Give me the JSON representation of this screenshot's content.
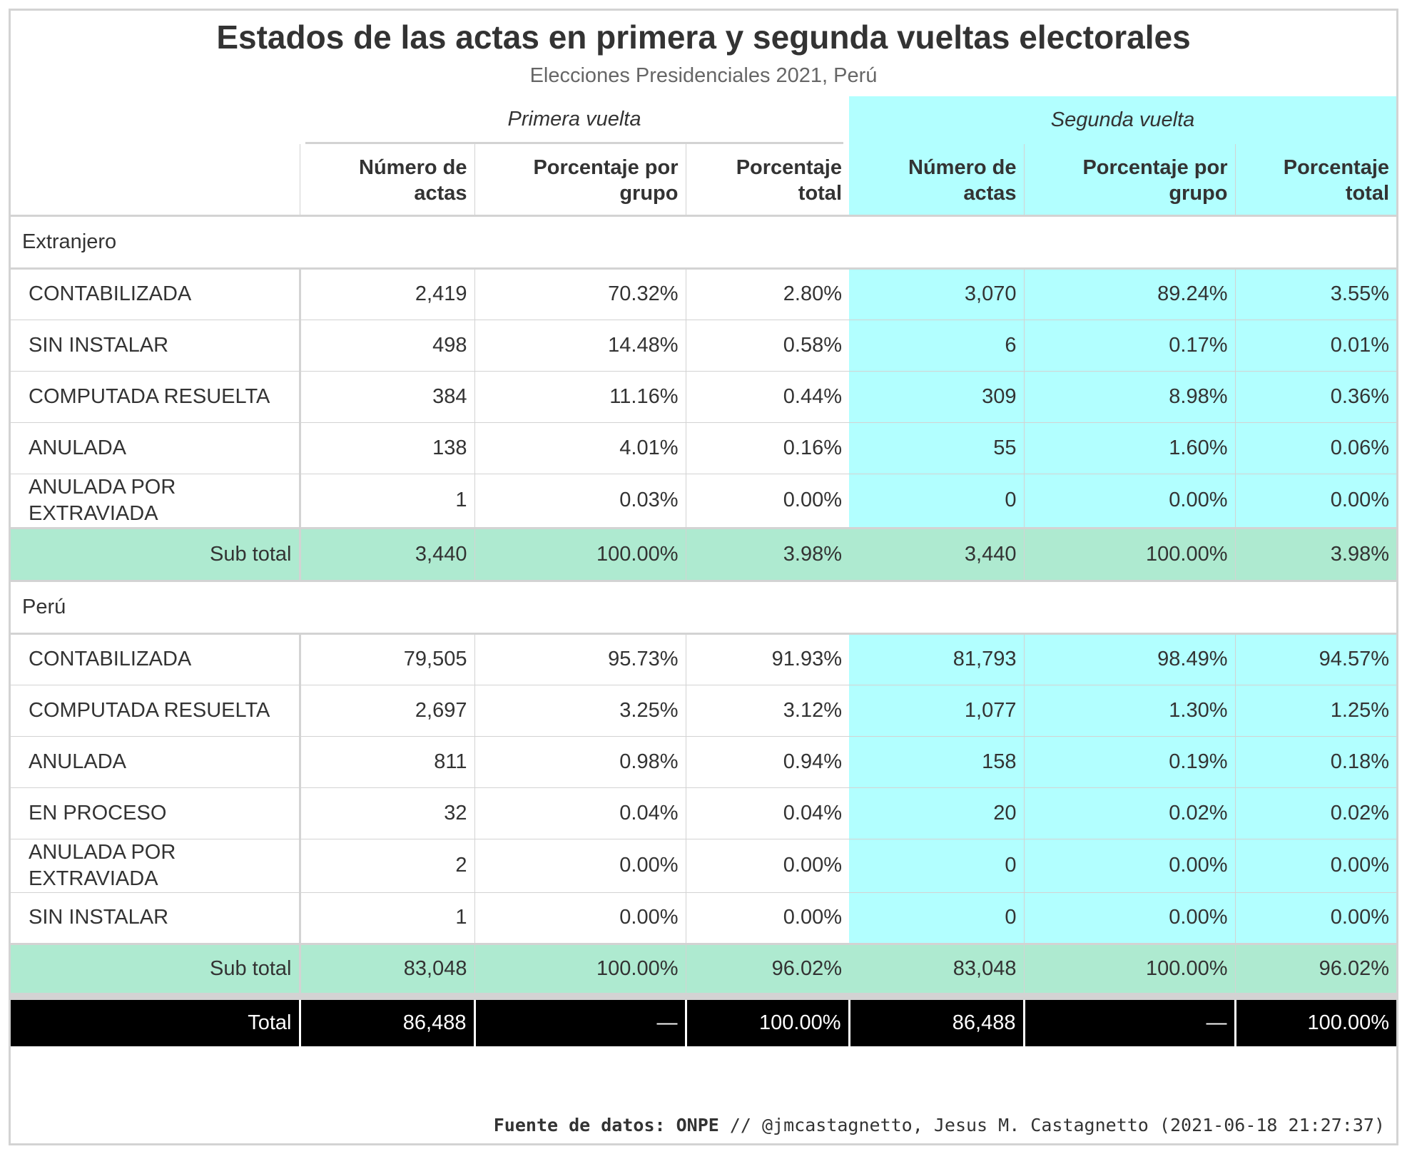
{
  "chart_data": {
    "type": "table",
    "title": "Estados de las actas en primera y segunda vueltas electorales",
    "subtitle": "Elecciones Presidenciales 2021, Perú",
    "spanners": [
      "Primera vuelta",
      "Segunda vuelta"
    ],
    "columns": [
      "Número de actas",
      "Porcentaje por grupo",
      "Porcentaje total",
      "Número de actas",
      "Porcentaje por grupo",
      "Porcentaje total"
    ],
    "groups": [
      {
        "name": "Extranjero",
        "rows": [
          {
            "label": "CONTABILIZADA",
            "values": [
              "2,419",
              "70.32%",
              "2.80%",
              "3,070",
              "89.24%",
              "3.55%"
            ]
          },
          {
            "label": "SIN INSTALAR",
            "values": [
              "498",
              "14.48%",
              "0.58%",
              "6",
              "0.17%",
              "0.01%"
            ]
          },
          {
            "label": "COMPUTADA RESUELTA",
            "values": [
              "384",
              "11.16%",
              "0.44%",
              "309",
              "8.98%",
              "0.36%"
            ]
          },
          {
            "label": "ANULADA",
            "values": [
              "138",
              "4.01%",
              "0.16%",
              "55",
              "1.60%",
              "0.06%"
            ]
          },
          {
            "label": "ANULADA POR EXTRAVIADA",
            "values": [
              "1",
              "0.03%",
              "0.00%",
              "0",
              "0.00%",
              "0.00%"
            ]
          }
        ],
        "subtotal": {
          "label": "Sub total",
          "values": [
            "3,440",
            "100.00%",
            "3.98%",
            "3,440",
            "100.00%",
            "3.98%"
          ]
        }
      },
      {
        "name": "Perú",
        "rows": [
          {
            "label": "CONTABILIZADA",
            "values": [
              "79,505",
              "95.73%",
              "91.93%",
              "81,793",
              "98.49%",
              "94.57%"
            ]
          },
          {
            "label": "COMPUTADA RESUELTA",
            "values": [
              "2,697",
              "3.25%",
              "3.12%",
              "1,077",
              "1.30%",
              "1.25%"
            ]
          },
          {
            "label": "ANULADA",
            "values": [
              "811",
              "0.98%",
              "0.94%",
              "158",
              "0.19%",
              "0.18%"
            ]
          },
          {
            "label": "EN PROCESO",
            "values": [
              "32",
              "0.04%",
              "0.04%",
              "20",
              "0.02%",
              "0.02%"
            ]
          },
          {
            "label": "ANULADA POR EXTRAVIADA",
            "values": [
              "2",
              "0.00%",
              "0.00%",
              "0",
              "0.00%",
              "0.00%"
            ]
          },
          {
            "label": "SIN INSTALAR",
            "values": [
              "1",
              "0.00%",
              "0.00%",
              "0",
              "0.00%",
              "0.00%"
            ]
          }
        ],
        "subtotal": {
          "label": "Sub total",
          "values": [
            "83,048",
            "100.00%",
            "96.02%",
            "83,048",
            "100.00%",
            "96.02%"
          ]
        }
      }
    ],
    "total": {
      "label": "Total",
      "values": [
        "86,488",
        "—",
        "100.00%",
        "86,488",
        "—",
        "100.00%"
      ]
    }
  },
  "footer": {
    "source_label": "Fuente de datos: ONPE",
    "credit": " // @jmcastagnetto, Jesus M. Castagnetto (2021-06-18 21:27:37)"
  },
  "colors": {
    "segunda_vuelta_bg": "#b2ffff",
    "subtotal_bg": "#aeead0",
    "total_bg": "#000000"
  }
}
